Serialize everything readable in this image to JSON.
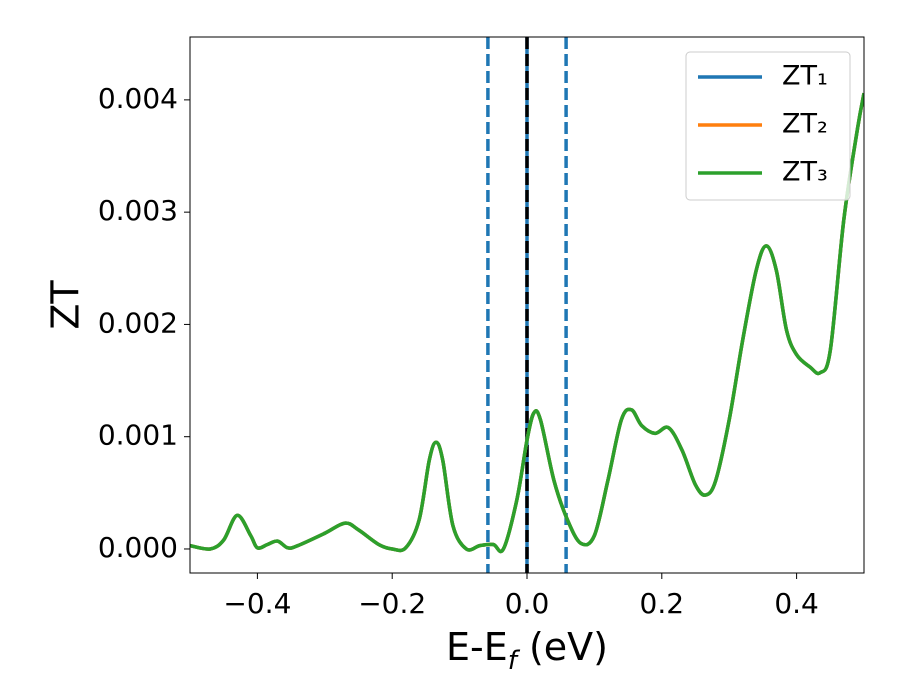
{
  "chart_data": {
    "type": "line",
    "xlabel": [
      "E-E",
      "f",
      " (eV)"
    ],
    "ylabel": "ZT",
    "x": [
      -0.5,
      -0.47,
      -0.45,
      -0.43,
      -0.41,
      -0.4,
      -0.385,
      -0.37,
      -0.355,
      -0.34,
      -0.3,
      -0.27,
      -0.25,
      -0.22,
      -0.2,
      -0.18,
      -0.16,
      -0.145,
      -0.135,
      -0.125,
      -0.11,
      -0.09,
      -0.07,
      -0.05,
      -0.035,
      -0.015,
      0.0,
      0.01,
      0.02,
      0.04,
      0.06,
      0.08,
      0.1,
      0.12,
      0.14,
      0.155,
      0.17,
      0.19,
      0.21,
      0.23,
      0.25,
      0.265,
      0.28,
      0.3,
      0.32,
      0.34,
      0.355,
      0.37,
      0.385,
      0.4,
      0.42,
      0.435,
      0.45,
      0.47,
      0.49,
      0.5
    ],
    "series": [
      {
        "name": "ZT₁",
        "color": "#1f77b4",
        "values": [
          3e-05,
          0.0,
          8e-05,
          0.0003,
          0.00012,
          1e-05,
          4e-05,
          7e-05,
          1e-05,
          3e-05,
          0.00014,
          0.00023,
          0.00017,
          4e-05,
          0.0,
          1e-05,
          0.00026,
          0.00079,
          0.00095,
          0.00079,
          0.00021,
          0.0,
          3e-05,
          4e-05,
          0.0,
          0.00044,
          0.00097,
          0.00121,
          0.00115,
          0.00061,
          0.00026,
          5e-05,
          0.00012,
          0.00061,
          0.00115,
          0.00124,
          0.0011,
          0.00103,
          0.00108,
          0.00088,
          0.00057,
          0.00048,
          0.00061,
          0.00115,
          0.00186,
          0.00248,
          0.0027,
          0.00248,
          0.00195,
          0.00173,
          0.00162,
          0.00157,
          0.00177,
          0.00293,
          0.00373,
          0.00406
        ]
      },
      {
        "name": "ZT₂",
        "color": "#ff7f0e",
        "values": [
          3e-05,
          0.0,
          8e-05,
          0.0003,
          0.00012,
          1e-05,
          4e-05,
          7e-05,
          1e-05,
          3e-05,
          0.00014,
          0.00023,
          0.00017,
          4e-05,
          0.0,
          1e-05,
          0.00026,
          0.00079,
          0.00095,
          0.00079,
          0.00021,
          0.0,
          3e-05,
          4e-05,
          0.0,
          0.00044,
          0.00097,
          0.00121,
          0.00115,
          0.00061,
          0.00026,
          5e-05,
          0.00012,
          0.00061,
          0.00115,
          0.00124,
          0.0011,
          0.00103,
          0.00108,
          0.00088,
          0.00057,
          0.00048,
          0.00061,
          0.00115,
          0.00186,
          0.00248,
          0.0027,
          0.00248,
          0.00195,
          0.00173,
          0.00162,
          0.00157,
          0.00177,
          0.00293,
          0.00373,
          0.00406
        ]
      },
      {
        "name": "ZT₃",
        "color": "#2ca02c",
        "values": [
          3e-05,
          0.0,
          8e-05,
          0.0003,
          0.00012,
          1e-05,
          4e-05,
          7e-05,
          1e-05,
          3e-05,
          0.00014,
          0.00023,
          0.00017,
          4e-05,
          0.0,
          1e-05,
          0.00026,
          0.00079,
          0.00095,
          0.00079,
          0.00021,
          0.0,
          3e-05,
          4e-05,
          0.0,
          0.00044,
          0.00097,
          0.00121,
          0.00115,
          0.00061,
          0.00026,
          5e-05,
          0.00012,
          0.00061,
          0.00115,
          0.00124,
          0.0011,
          0.00103,
          0.00108,
          0.00088,
          0.00057,
          0.00048,
          0.00061,
          0.00115,
          0.00186,
          0.00248,
          0.0027,
          0.00248,
          0.00195,
          0.00173,
          0.00162,
          0.00157,
          0.00177,
          0.00293,
          0.00373,
          0.00406
        ]
      }
    ],
    "vlines": [
      {
        "x": 0,
        "color": "#1f77b4",
        "style": "solid"
      },
      {
        "x": -0.058,
        "color": "#1f77b4",
        "style": "dashed"
      },
      {
        "x": 0.058,
        "color": "#1f77b4",
        "style": "dashed"
      },
      {
        "x": 0,
        "color": "#000000",
        "style": "dashed"
      }
    ],
    "xlim": [
      -0.5,
      0.5
    ],
    "ylim": [
      -0.000214,
      0.00456
    ],
    "xticks": [
      {
        "value": -0.4,
        "label": "−0.4"
      },
      {
        "value": -0.2,
        "label": "−0.2"
      },
      {
        "value": 0,
        "label": "0.0"
      },
      0.2,
      0.4
    ],
    "yticks": [
      {
        "value": 0,
        "label": "0.000"
      },
      0.001,
      0.002,
      0.003,
      0.004
    ],
    "legend": "upper right"
  }
}
